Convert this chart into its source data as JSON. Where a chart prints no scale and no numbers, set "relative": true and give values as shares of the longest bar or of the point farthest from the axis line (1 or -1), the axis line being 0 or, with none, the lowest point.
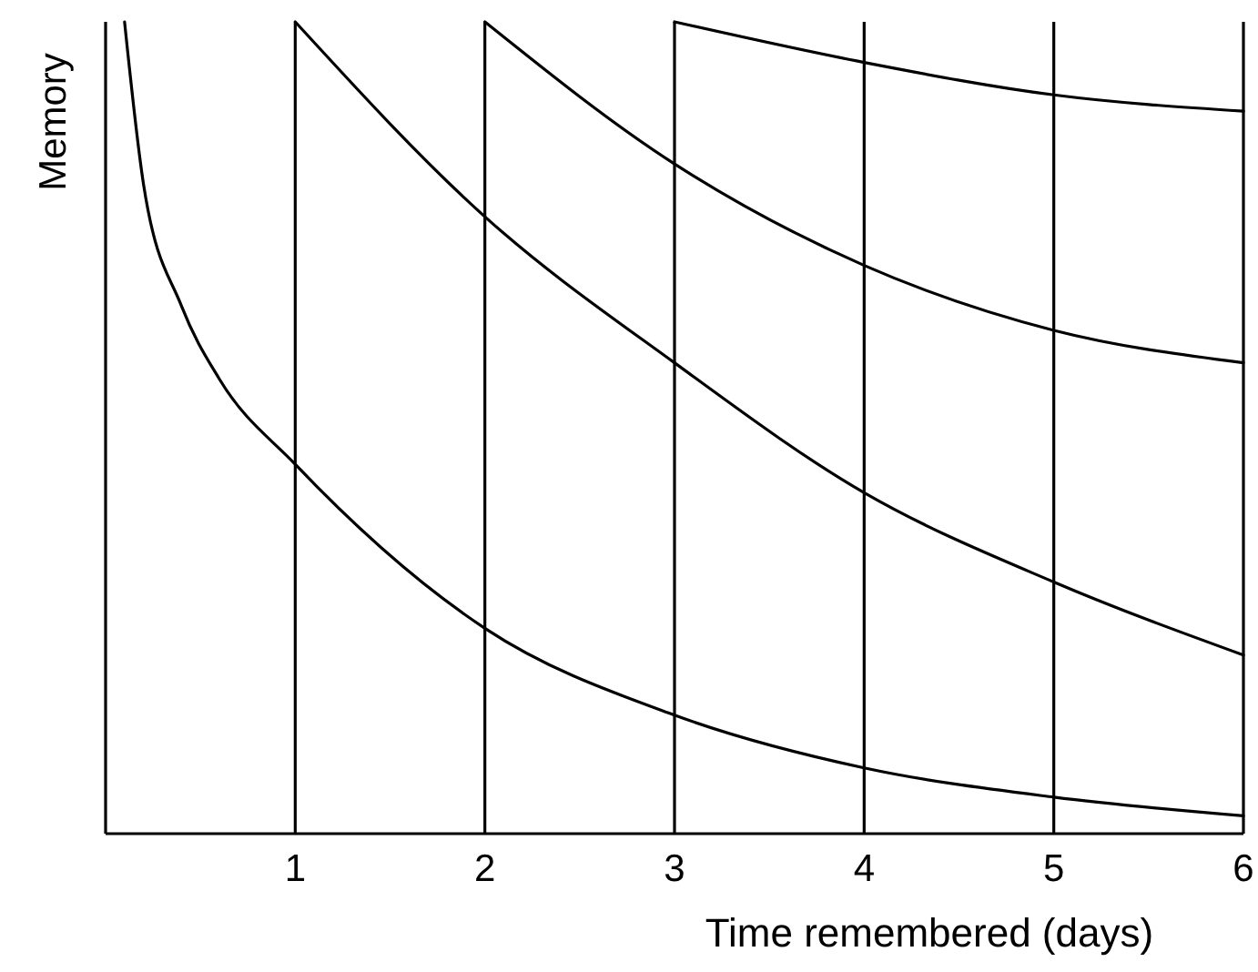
{
  "chart_data": {
    "type": "line",
    "xlabel": "Time remembered (days)",
    "ylabel": "Memory",
    "relative": true,
    "xlim": [
      0,
      6
    ],
    "xticks": [
      1,
      2,
      3,
      4,
      5,
      6
    ],
    "grid": "x",
    "series": [
      {
        "color": "#000000",
        "x": [
          0.1,
          0.2,
          0.4,
          0.6,
          1,
          2,
          3,
          4,
          5,
          6
        ],
        "values": [
          1.0,
          0.8,
          0.65,
          0.56,
          0.455,
          0.253,
          0.146,
          0.081,
          0.045,
          0.022
        ]
      },
      {
        "color": "#000000",
        "x": [
          1,
          2,
          3,
          4,
          5,
          6
        ],
        "values": [
          1.0,
          0.76,
          0.58,
          0.42,
          0.31,
          0.22
        ]
      },
      {
        "color": "#000000",
        "x": [
          2,
          3,
          4,
          5,
          6
        ],
        "values": [
          1.0,
          0.825,
          0.7,
          0.62,
          0.58
        ]
      },
      {
        "color": "#000000",
        "x": [
          3,
          4,
          5,
          6
        ],
        "values": [
          1.0,
          0.95,
          0.91,
          0.89
        ]
      }
    ]
  }
}
